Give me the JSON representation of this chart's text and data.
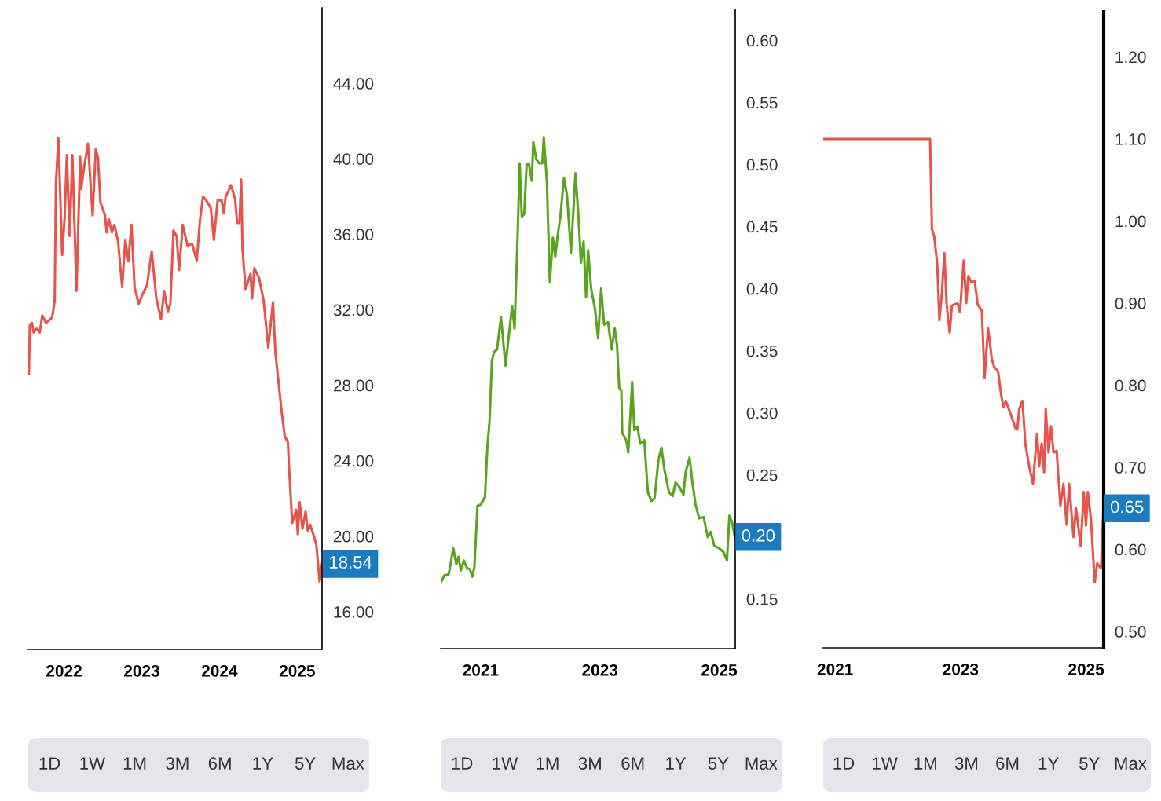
{
  "chart_data": [
    {
      "type": "line",
      "color": "#e8534a",
      "xlim": [
        2021.54,
        2025.32
      ],
      "ylim": [
        14,
        48
      ],
      "xticks": [
        2022,
        2023,
        2024,
        2025
      ],
      "yticks": [
        {
          "value": 16,
          "label": "16.00"
        },
        {
          "value": 20,
          "label": "20.00"
        },
        {
          "value": 24,
          "label": "24.00"
        },
        {
          "value": 28,
          "label": "28.00"
        },
        {
          "value": 32,
          "label": "32.00"
        },
        {
          "value": 36,
          "label": "36.00"
        },
        {
          "value": 40,
          "label": "40.00"
        },
        {
          "value": 44,
          "label": "44.00"
        }
      ],
      "x": [
        2021.548,
        2021.56,
        2021.588,
        2021.608,
        2021.648,
        2021.688,
        2021.72,
        2021.768,
        2021.848,
        2021.88,
        2021.896,
        2021.928,
        2021.976,
        2022.008,
        2022.036,
        2022.072,
        2022.108,
        2022.16,
        2022.208,
        2022.22,
        2022.256,
        2022.308,
        2022.368,
        2022.408,
        2022.436,
        2022.468,
        2022.528,
        2022.548,
        2022.576,
        2022.616,
        2022.648,
        2022.696,
        2022.748,
        2022.788,
        2022.828,
        2022.868,
        2022.908,
        2022.96,
        2023.008,
        2023.068,
        2023.128,
        2023.188,
        2023.248,
        2023.288,
        2023.336,
        2023.368,
        2023.408,
        2023.448,
        2023.48,
        2023.528,
        2023.588,
        2023.648,
        2023.708,
        2023.748,
        2023.788,
        2023.828,
        2023.888,
        2023.928,
        2023.976,
        2024.028,
        2024.056,
        2024.08,
        2024.148,
        2024.2,
        2024.228,
        2024.256,
        2024.28,
        2024.296,
        2024.336,
        2024.368,
        2024.4,
        2024.42,
        2024.448,
        2024.508,
        2024.568,
        2024.628,
        2024.688,
        2024.72,
        2024.8,
        2024.84,
        2024.88,
        2024.896,
        2024.936,
        2024.988,
        2025.008,
        2025.032,
        2025.068,
        2025.108,
        2025.136,
        2025.168,
        2025.208,
        2025.248,
        2025.288,
        2025.32
      ],
      "values": [
        28.6,
        31.2,
        31.3,
        30.8,
        31.0,
        30.8,
        31.7,
        31.3,
        31.6,
        32.5,
        38.7,
        41.1,
        34.9,
        36.9,
        40.2,
        35.9,
        40.2,
        33.0,
        40.1,
        38.4,
        39.5,
        40.8,
        37.0,
        40.5,
        40.1,
        37.7,
        37.0,
        36.1,
        36.8,
        36.1,
        36.5,
        35.6,
        33.2,
        35.7,
        34.6,
        36.5,
        33.2,
        32.3,
        32.8,
        33.3,
        35.1,
        32.6,
        31.5,
        33.0,
        31.9,
        32.3,
        36.2,
        35.9,
        34.1,
        36.5,
        35.4,
        35.5,
        34.6,
        36.7,
        38.0,
        37.8,
        37.4,
        35.7,
        37.8,
        37.8,
        37.1,
        38.0,
        38.6,
        37.9,
        36.6,
        36.6,
        38.9,
        35.2,
        33.1,
        33.5,
        33.9,
        32.6,
        34.2,
        33.7,
        32.5,
        30.0,
        32.4,
        29.7,
        26.6,
        25.3,
        25.0,
        23.6,
        20.7,
        21.4,
        20.1,
        21.8,
        20.4,
        21.3,
        20.3,
        20.6,
        20.1,
        19.5,
        17.6,
        18.54
      ],
      "annotations": [
        {
          "text": "18.54",
          "x": 2025.32,
          "y": 18.54
        },
        "1D",
        "1W",
        "1M",
        "3M",
        "6M",
        "1Y",
        "5Y",
        "Max"
      ]
    },
    {
      "type": "line",
      "color": "#5aa51e",
      "xlim": [
        2020.33,
        2025.27
      ],
      "ylim": [
        0.11,
        0.625
      ],
      "xticks": [
        2021,
        2023,
        2025
      ],
      "yticks": [
        {
          "value": 0.15,
          "label": "0.15"
        },
        {
          "value": 0.25,
          "label": "0.25"
        },
        {
          "value": 0.3,
          "label": "0.30"
        },
        {
          "value": 0.35,
          "label": "0.35"
        },
        {
          "value": 0.4,
          "label": "0.40"
        },
        {
          "value": 0.45,
          "label": "0.45"
        },
        {
          "value": 0.5,
          "label": "0.50"
        },
        {
          "value": 0.55,
          "label": "0.55"
        },
        {
          "value": 0.6,
          "label": "0.60"
        }
      ],
      "x": [
        2020.339,
        2020.39,
        2020.466,
        2020.541,
        2020.592,
        2020.628,
        2020.668,
        2020.719,
        2020.769,
        2020.82,
        2020.86,
        2020.896,
        2020.946,
        2020.997,
        2021.073,
        2021.113,
        2021.149,
        2021.189,
        2021.224,
        2021.275,
        2021.341,
        2021.386,
        2021.417,
        2021.477,
        2021.528,
        2021.569,
        2021.619,
        2021.655,
        2021.69,
        2021.73,
        2021.771,
        2021.807,
        2021.857,
        2021.883,
        2021.933,
        2021.984,
        2022.034,
        2022.059,
        2022.11,
        2022.161,
        2022.211,
        2022.251,
        2022.287,
        2022.337,
        2022.398,
        2022.449,
        2022.515,
        2022.591,
        2022.641,
        2022.682,
        2022.727,
        2022.768,
        2022.803,
        2022.854,
        2022.92,
        2022.97,
        2023.021,
        2023.072,
        2023.137,
        2023.198,
        2023.249,
        2023.289,
        2023.325,
        2023.36,
        2023.375,
        2023.441,
        2023.476,
        2023.542,
        2023.577,
        2023.628,
        2023.679,
        2023.745,
        2023.805,
        2023.866,
        2023.917,
        2023.982,
        2024.033,
        2024.083,
        2024.159,
        2024.22,
        2024.27,
        2024.336,
        2024.402,
        2024.437,
        2024.503,
        2024.554,
        2024.605,
        2024.665,
        2024.741,
        2024.807,
        2024.858,
        2024.918,
        2024.994,
        2025.07,
        2025.131,
        2025.171,
        2025.221,
        2025.262
      ],
      "values": [
        0.164,
        0.169,
        0.17,
        0.191,
        0.178,
        0.184,
        0.173,
        0.181,
        0.175,
        0.174,
        0.168,
        0.176,
        0.225,
        0.226,
        0.232,
        0.273,
        0.293,
        0.342,
        0.349,
        0.351,
        0.377,
        0.354,
        0.338,
        0.364,
        0.386,
        0.368,
        0.441,
        0.501,
        0.458,
        0.46,
        0.5,
        0.501,
        0.487,
        0.518,
        0.504,
        0.501,
        0.501,
        0.522,
        0.487,
        0.405,
        0.441,
        0.426,
        0.441,
        0.458,
        0.489,
        0.475,
        0.429,
        0.493,
        0.458,
        0.421,
        0.438,
        0.393,
        0.431,
        0.4,
        0.383,
        0.36,
        0.4,
        0.371,
        0.373,
        0.351,
        0.368,
        0.354,
        0.32,
        0.318,
        0.284,
        0.278,
        0.268,
        0.325,
        0.286,
        0.289,
        0.275,
        0.278,
        0.236,
        0.229,
        0.231,
        0.262,
        0.272,
        0.254,
        0.236,
        0.233,
        0.244,
        0.24,
        0.234,
        0.252,
        0.264,
        0.243,
        0.226,
        0.215,
        0.216,
        0.2,
        0.204,
        0.193,
        0.191,
        0.188,
        0.181,
        0.217,
        0.211,
        0.2
      ],
      "annotations": [
        {
          "text": "0.20",
          "x": 2025.262,
          "y": 0.2
        },
        "1D",
        "1W",
        "1M",
        "3M",
        "6M",
        "1Y",
        "5Y",
        "Max"
      ]
    },
    {
      "type": "line",
      "color": "#e8534a",
      "xlim": [
        2020.81,
        2025.28
      ],
      "ylim": [
        0.48,
        1.255
      ],
      "xticks": [
        2021,
        2023,
        2025
      ],
      "yticks": [
        {
          "value": 0.5,
          "label": "0.50"
        },
        {
          "value": 0.6,
          "label": "0.60"
        },
        {
          "value": 0.7,
          "label": "0.70"
        },
        {
          "value": 0.8,
          "label": "0.80"
        },
        {
          "value": 0.9,
          "label": "0.90"
        },
        {
          "value": 1.0,
          "label": "1.00"
        },
        {
          "value": 1.1,
          "label": "1.10"
        },
        {
          "value": 1.2,
          "label": "1.20"
        }
      ],
      "x": [
        2020.814,
        2022.513,
        2022.543,
        2022.578,
        2022.627,
        2022.662,
        2022.702,
        2022.741,
        2022.777,
        2022.826,
        2022.861,
        2022.95,
        2022.99,
        2023.05,
        2023.089,
        2023.124,
        2023.174,
        2023.224,
        2023.273,
        2023.338,
        2023.382,
        2023.437,
        2023.497,
        2023.536,
        2023.596,
        2023.646,
        2023.686,
        2023.72,
        2023.82,
        2023.87,
        2023.904,
        2023.934,
        2023.984,
        2024.034,
        2024.093,
        2024.153,
        2024.217,
        2024.252,
        2024.292,
        2024.331,
        2024.356,
        2024.401,
        2024.441,
        2024.48,
        2024.53,
        2024.59,
        2024.639,
        2024.689,
        2024.729,
        2024.799,
        2024.838,
        2024.913,
        2024.963,
        2024.998,
        2025.028,
        2025.077,
        2025.137,
        2025.177,
        2025.237,
        2025.277
      ],
      "values": [
        1.1,
        1.1,
        0.99,
        0.982,
        0.948,
        0.879,
        0.913,
        0.961,
        0.898,
        0.864,
        0.897,
        0.9,
        0.889,
        0.952,
        0.9,
        0.933,
        0.925,
        0.927,
        0.898,
        0.891,
        0.809,
        0.87,
        0.832,
        0.822,
        0.817,
        0.788,
        0.773,
        0.781,
        0.76,
        0.748,
        0.746,
        0.771,
        0.781,
        0.727,
        0.701,
        0.68,
        0.741,
        0.701,
        0.729,
        0.694,
        0.771,
        0.718,
        0.75,
        0.718,
        0.72,
        0.653,
        0.68,
        0.63,
        0.68,
        0.615,
        0.651,
        0.604,
        0.67,
        0.629,
        0.67,
        0.636,
        0.56,
        0.583,
        0.577,
        0.65
      ],
      "annotations": [
        {
          "text": "0.65",
          "x": 2025.277,
          "y": 0.65
        },
        "1D",
        "1W",
        "1M",
        "3M",
        "6M",
        "1Y",
        "5Y",
        "Max"
      ]
    }
  ]
}
